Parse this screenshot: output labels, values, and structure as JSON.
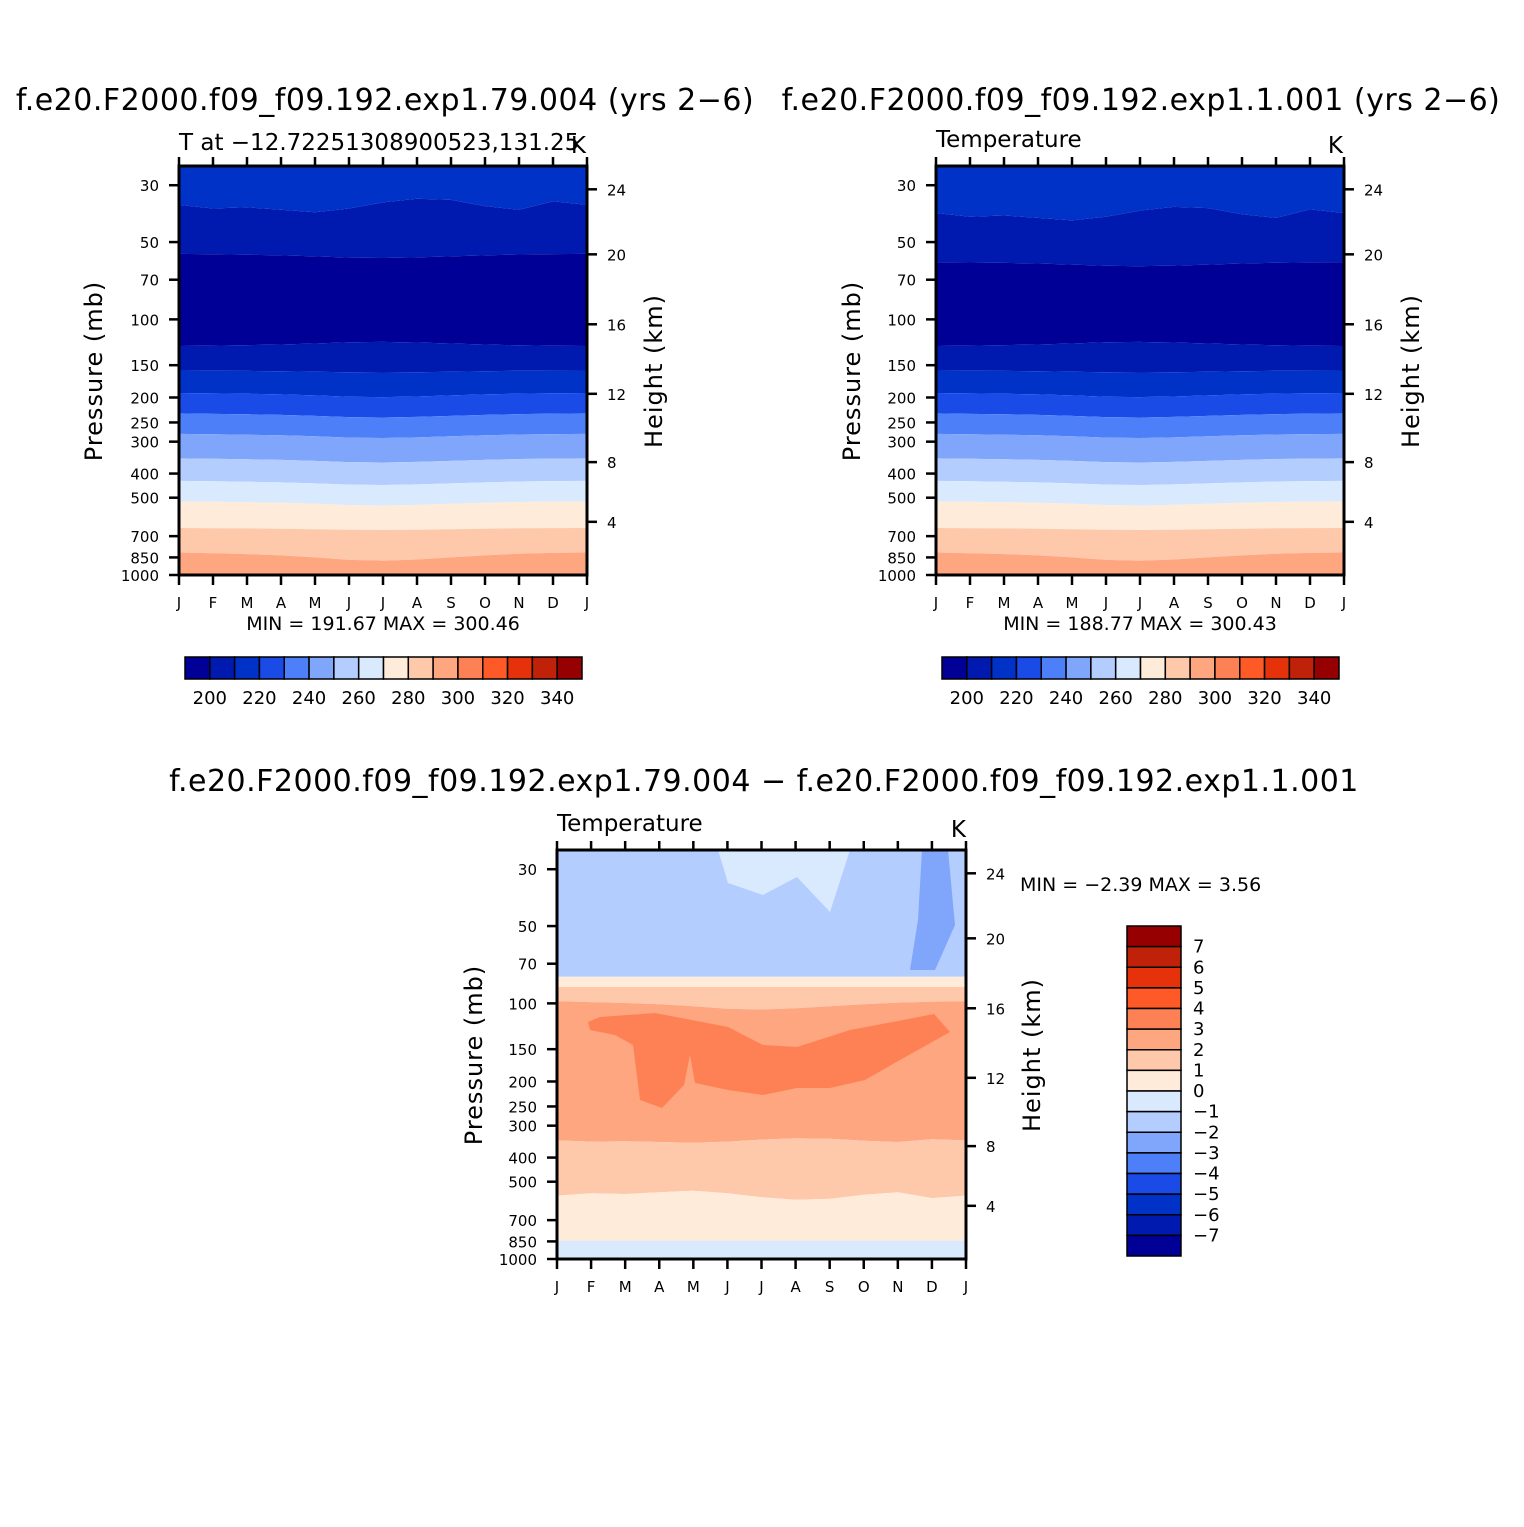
{
  "chart_data": [
    {
      "type": "heatmap",
      "title": "f.e20.F2000.f09_f09.192.exp1.79.004 (yrs 2−6)",
      "subtitle_left": "T at −12.72251308900523,131.25",
      "subtitle_right": "K",
      "ylabel": "Pressure (mb)",
      "ylabel_right": "Height (km)",
      "min_max_text": "MIN =  191.67  MAX =  300.46",
      "x": [
        "J",
        "F",
        "M",
        "A",
        "M",
        "J",
        "J",
        "A",
        "S",
        "O",
        "N",
        "D",
        "J"
      ],
      "pressure_ticks": [
        "30",
        "50",
        "70",
        "100",
        "150",
        "200",
        "250",
        "300",
        "400",
        "500",
        "700",
        "850",
        "1000"
      ],
      "height_ticks": [
        "24",
        "20",
        "16",
        "12",
        "8",
        "4"
      ],
      "levels": [
        190,
        200,
        210,
        220,
        230,
        240,
        250,
        260,
        270,
        280,
        290,
        300,
        310,
        320,
        330,
        340,
        350
      ],
      "colorbar_labels": [
        "200",
        "220",
        "240",
        "260",
        "280",
        "300",
        "320",
        "340"
      ],
      "contour_levels_approx": [
        {
          "value": 210,
          "p": [
            [
              25,
              28
            ],
            [
              30,
              28
            ],
            [
              32,
              27
            ],
            [
              36,
              30
            ],
            [
              37,
              35
            ],
            [
              38,
              30
            ],
            [
              40,
              28
            ]
          ]
        },
        {
          "value": 200,
          "p": [
            [
              58,
              60
            ],
            [
              56,
              62
            ],
            [
              57,
              64
            ],
            [
              62,
              66
            ],
            [
              64,
              66
            ],
            [
              60,
              64
            ],
            [
              55,
              60
            ]
          ]
        }
      ],
      "min": 191.67,
      "max": 300.46
    },
    {
      "type": "heatmap",
      "title": "f.e20.F2000.f09_f09.192.exp1.1.001 (yrs 2−6)",
      "subtitle_left": "Temperature",
      "subtitle_right": "K",
      "ylabel": "Pressure (mb)",
      "ylabel_right": "Height (km)",
      "min_max_text": "MIN =  188.77  MAX =  300.43",
      "x": [
        "J",
        "F",
        "M",
        "A",
        "M",
        "J",
        "J",
        "A",
        "S",
        "O",
        "N",
        "D",
        "J"
      ],
      "pressure_ticks": [
        "30",
        "50",
        "70",
        "100",
        "150",
        "200",
        "250",
        "300",
        "400",
        "500",
        "700",
        "850",
        "1000"
      ],
      "height_ticks": [
        "24",
        "20",
        "16",
        "12",
        "8",
        "4"
      ],
      "levels": [
        190,
        200,
        210,
        220,
        230,
        240,
        250,
        260,
        270,
        280,
        290,
        300,
        310,
        320,
        330,
        340,
        350
      ],
      "colorbar_labels": [
        "200",
        "220",
        "240",
        "260",
        "280",
        "300",
        "320",
        "340"
      ],
      "min": 188.77,
      "max": 300.43
    },
    {
      "type": "heatmap",
      "title": "f.e20.F2000.f09_f09.192.exp1.79.004 − f.e20.F2000.f09_f09.192.exp1.1.001",
      "subtitle_left": "Temperature",
      "subtitle_right": "K",
      "ylabel": "Pressure (mb)",
      "ylabel_right": "Height (km)",
      "min_max_text": "MIN =    −2.39  MAX =     3.56",
      "x": [
        "J",
        "F",
        "M",
        "A",
        "M",
        "J",
        "J",
        "A",
        "S",
        "O",
        "N",
        "D",
        "J"
      ],
      "pressure_ticks": [
        "30",
        "50",
        "70",
        "100",
        "150",
        "200",
        "250",
        "300",
        "400",
        "500",
        "700",
        "850",
        "1000"
      ],
      "height_ticks": [
        "24",
        "20",
        "16",
        "12",
        "8",
        "4"
      ],
      "levels": [
        -8,
        -7,
        -6,
        -5,
        -4,
        -3,
        -2,
        -1,
        0,
        1,
        2,
        3,
        4,
        5,
        6,
        7,
        8
      ],
      "colorbar_labels": [
        "7",
        "6",
        "5",
        "4",
        "3",
        "2",
        "1",
        "0",
        "−1",
        "−2",
        "−3",
        "−4",
        "−5",
        "−6",
        "−7"
      ],
      "min": -2.39,
      "max": 3.56
    }
  ],
  "colors": {
    "scale": [
      "#000096",
      "#0019AE",
      "#0032C7",
      "#1A4BE6",
      "#4D7FF9",
      "#80A6FB",
      "#B3CDFE",
      "#D9EAFF",
      "#FEEBDA",
      "#FEC8AB",
      "#FEA680",
      "#FE8155",
      "#FE5A28",
      "#E6320A",
      "#BF2208",
      "#960000"
    ]
  }
}
